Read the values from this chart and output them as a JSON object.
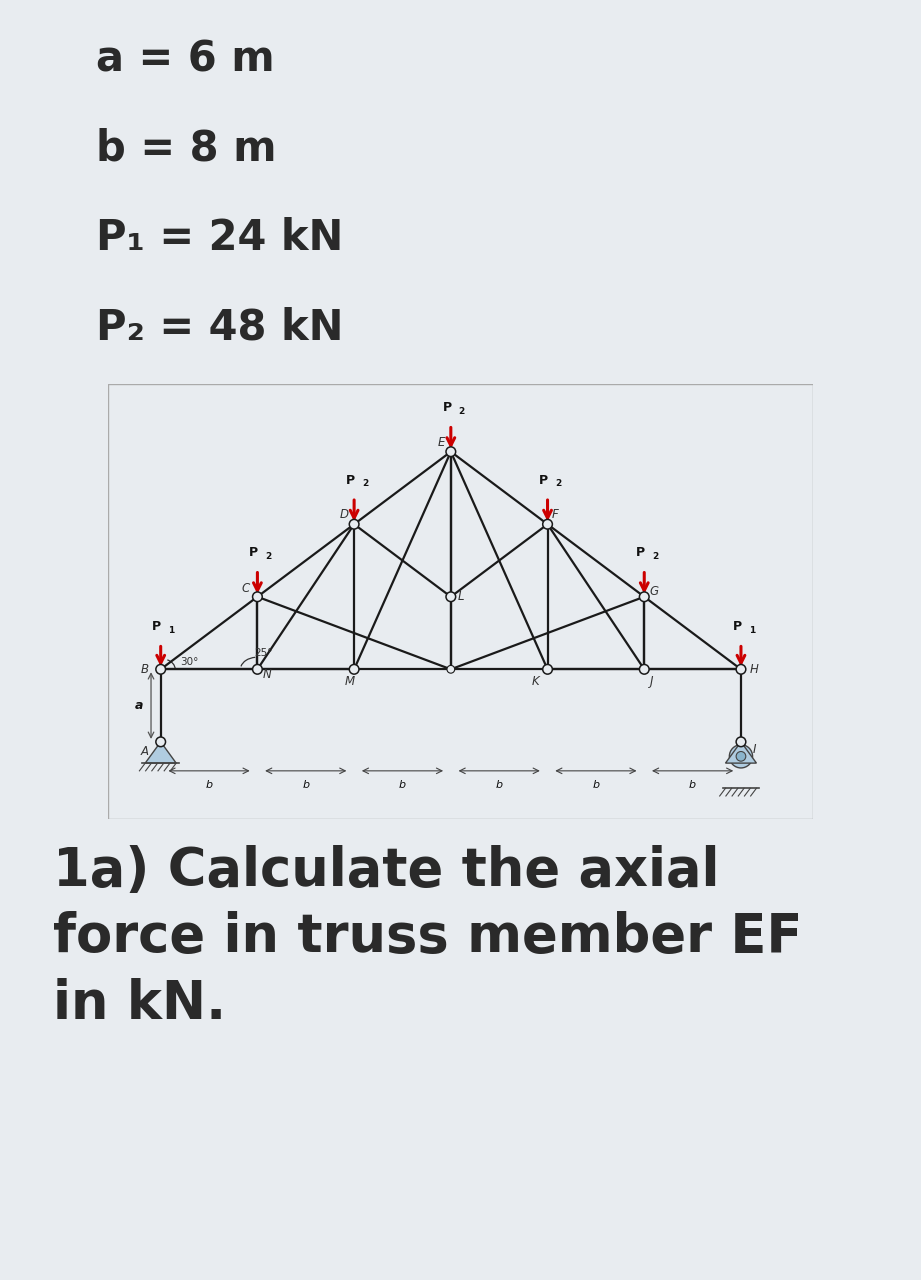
{
  "bg_color": "#e8ecf0",
  "diagram_bg": "#f5f6f8",
  "text_color": "#2a2a2a",
  "params": [
    "a = 6 m",
    "b = 8 m",
    "P₁ = 24 kN",
    "P₂ = 48 kN"
  ],
  "question": "1a) Calculate the axial\nforce in truss member EF\nin kN.",
  "arrow_color": "#cc0000",
  "line_color": "#1a1a1a",
  "node_fill": "#e8ecf0",
  "node_edge": "#1a1a1a",
  "angle_color": "#333333",
  "support_fill": "#b0cce0",
  "support_edge": "#444444"
}
